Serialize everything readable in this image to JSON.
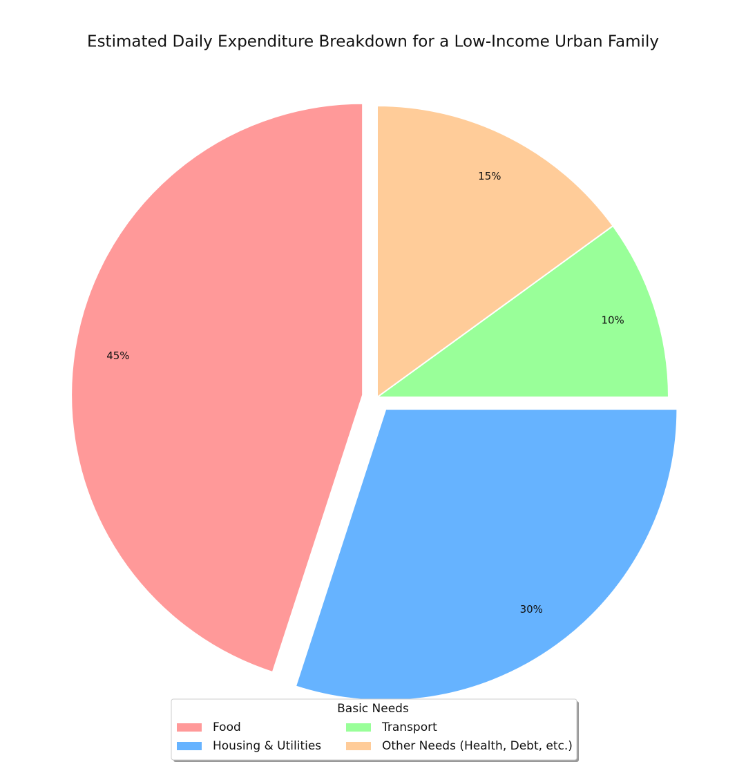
{
  "chart_data": {
    "type": "pie",
    "title": "Estimated Daily Expenditure Breakdown for a Low-Income Urban Family",
    "categories": [
      "Food",
      "Housing & Utilities",
      "Transport",
      "Other Needs (Health, Debt, etc.)"
    ],
    "values": [
      45,
      30,
      10,
      15
    ],
    "value_labels": [
      "45%",
      "30%",
      "10%",
      "15%"
    ],
    "colors": [
      "#ff9999",
      "#66b3ff",
      "#99ff99",
      "#ffcc99"
    ],
    "explode": [
      0.05,
      0.05,
      0,
      0
    ],
    "start_angle": 90,
    "legend_title": "Basic Needs",
    "legend": "lower center"
  }
}
